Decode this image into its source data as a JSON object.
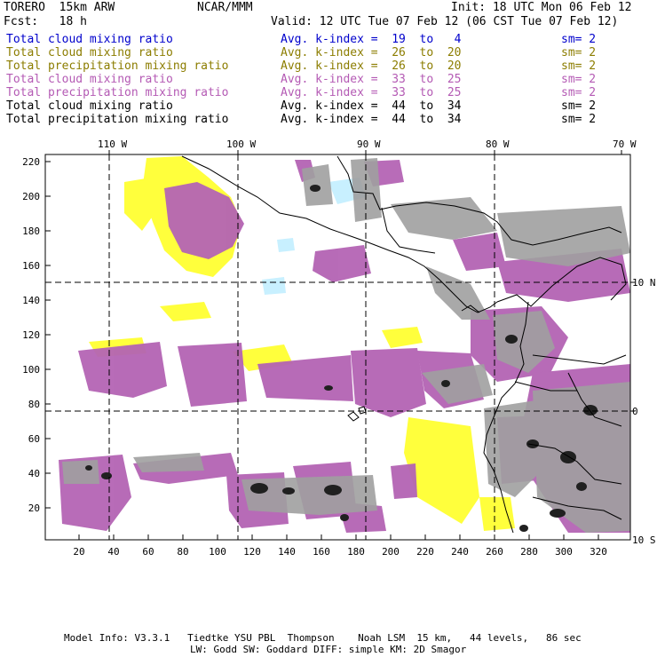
{
  "header": {
    "model": "TORERO  15km ARW",
    "org": "NCAR/MMM",
    "init": "Init: 18 UTC Mon 06 Feb 12",
    "fcst": "Fcst:   18 h",
    "valid": "Valid: 12 UTC Tue 07 Feb 12 (06 CST Tue 07 Feb 12)"
  },
  "colors": {
    "blue": "#0000cc",
    "olive": "#8c7d00",
    "purple": "#b45ab4",
    "black": "#000000",
    "cloud_yellow": "#ffff3c",
    "cloud_cyan": "#c8f0ff",
    "cloud_purple": "#b464b4",
    "cloud_gray": "#a0a0a0",
    "cloud_dark": "#202020"
  },
  "legend": [
    {
      "field": "Total cloud mixing ratio",
      "kindex": "Avg. k-index =  19  to   4",
      "sm": "sm= 2",
      "color": "blue"
    },
    {
      "field": "Total cloud mixing ratio",
      "kindex": "Avg. k-index =  26  to  20",
      "sm": "sm= 2",
      "color": "olive"
    },
    {
      "field": "Total precipitation mixing ratio",
      "kindex": "Avg. k-index =  26  to  20",
      "sm": "sm= 2",
      "color": "olive"
    },
    {
      "field": "Total cloud mixing ratio",
      "kindex": "Avg. k-index =  33  to  25",
      "sm": "sm= 2",
      "color": "purple"
    },
    {
      "field": "Total precipitation mixing ratio",
      "kindex": "Avg. k-index =  33  to  25",
      "sm": "sm= 2",
      "color": "purple"
    },
    {
      "field": "Total cloud mixing ratio",
      "kindex": "Avg. k-index =  44  to  34",
      "sm": "sm= 2",
      "color": "black"
    },
    {
      "field": "Total precipitation mixing ratio",
      "kindex": "Avg. k-index =  44  to  34",
      "sm": "sm= 2",
      "color": "black"
    }
  ],
  "axes": {
    "top_lon_labels": [
      "110 W",
      "100 W",
      "90 W",
      "80 W",
      "70 W"
    ],
    "right_lat_labels": [
      "10 N",
      "0",
      "10 S"
    ],
    "x_ticks": [
      "20",
      "40",
      "60",
      "80",
      "100",
      "120",
      "140",
      "160",
      "180",
      "200",
      "220",
      "240",
      "260",
      "280",
      "300",
      "320"
    ],
    "y_ticks": [
      "20",
      "40",
      "60",
      "80",
      "100",
      "120",
      "140",
      "160",
      "180",
      "200",
      "220"
    ]
  },
  "footer": {
    "line1": "Model Info: V3.3.1   Tiedtke YSU PBL  Thompson    Noah LSM  15 km,   44 levels,   86 sec",
    "line2": "LW: Godd SW: Goddard DIFF: simple KM: 2D Smagor"
  }
}
